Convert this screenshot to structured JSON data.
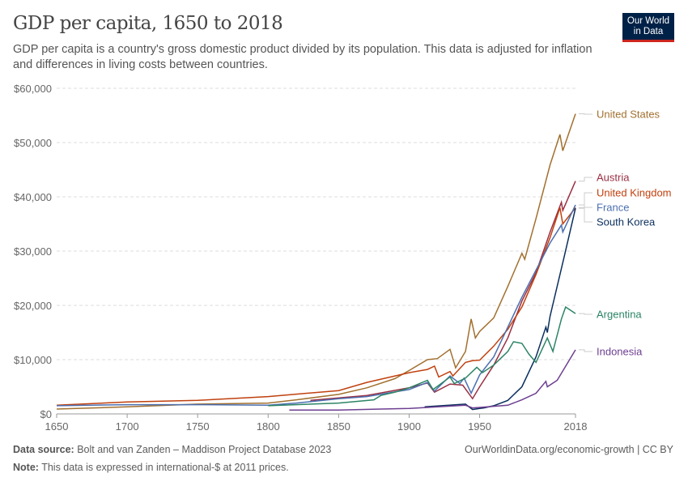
{
  "header": {
    "title": "GDP per capita, 1650 to 2018",
    "subtitle": "GDP per capita is a country's gross domestic product divided by its population. This data is adjusted for inflation and differences in living costs between countries.",
    "logo": "Our World in Data"
  },
  "footer": {
    "source_label": "Data source:",
    "source": "Bolt and van Zanden – Maddison Project Database 2023",
    "url": "OurWorldinData.org/economic-growth | CC BY",
    "note_label": "Note:",
    "note": "This data is expressed in international-$ at 2011 prices."
  },
  "chart_data": {
    "type": "line",
    "title": "GDP per capita, 1650 to 2018",
    "xlim": [
      1650,
      2018
    ],
    "ylim": [
      0,
      60000
    ],
    "xticks": [
      1650,
      1700,
      1750,
      1800,
      1850,
      1900,
      1950,
      2018
    ],
    "yticks": [
      0,
      10000,
      20000,
      30000,
      40000,
      50000,
      60000
    ],
    "ytick_labels": [
      "$0",
      "$10,000",
      "$20,000",
      "$30,000",
      "$40,000",
      "$50,000",
      "$60,000"
    ],
    "grid": "horizontal dashed",
    "legend": "right, labels at line ends",
    "series": [
      {
        "name": "United States",
        "color": "#a2702f",
        "label_value": 55300,
        "points": [
          [
            1650,
            900
          ],
          [
            1700,
            1300
          ],
          [
            1750,
            1800
          ],
          [
            1800,
            2000
          ],
          [
            1820,
            2600
          ],
          [
            1850,
            3600
          ],
          [
            1870,
            4800
          ],
          [
            1890,
            6500
          ],
          [
            1900,
            8000
          ],
          [
            1913,
            10000
          ],
          [
            1920,
            10200
          ],
          [
            1929,
            11900
          ],
          [
            1933,
            8500
          ],
          [
            1940,
            11500
          ],
          [
            1944,
            17500
          ],
          [
            1947,
            14000
          ],
          [
            1950,
            15200
          ],
          [
            1960,
            17700
          ],
          [
            1970,
            23500
          ],
          [
            1980,
            29600
          ],
          [
            1982,
            28500
          ],
          [
            1990,
            36000
          ],
          [
            2000,
            45900
          ],
          [
            2007,
            51500
          ],
          [
            2009,
            48500
          ],
          [
            2018,
            55300
          ]
        ]
      },
      {
        "name": "Austria",
        "color": "#9a3043",
        "label_value": 42900,
        "points": [
          [
            1830,
            2500
          ],
          [
            1870,
            3400
          ],
          [
            1900,
            4800
          ],
          [
            1913,
            5700
          ],
          [
            1918,
            4000
          ],
          [
            1929,
            5500
          ],
          [
            1938,
            5300
          ],
          [
            1945,
            2800
          ],
          [
            1950,
            5000
          ],
          [
            1960,
            9000
          ],
          [
            1970,
            14000
          ],
          [
            1980,
            20800
          ],
          [
            1990,
            26000
          ],
          [
            2000,
            33500
          ],
          [
            2008,
            39000
          ],
          [
            2009,
            37500
          ],
          [
            2018,
            42900
          ]
        ]
      },
      {
        "name": "United Kingdom",
        "color": "#c0400e",
        "label_value": 38000,
        "points": [
          [
            1650,
            1600
          ],
          [
            1700,
            2200
          ],
          [
            1750,
            2500
          ],
          [
            1800,
            3200
          ],
          [
            1850,
            4300
          ],
          [
            1870,
            5800
          ],
          [
            1900,
            7600
          ],
          [
            1913,
            8200
          ],
          [
            1918,
            8800
          ],
          [
            1921,
            6800
          ],
          [
            1929,
            7800
          ],
          [
            1931,
            7000
          ],
          [
            1940,
            9500
          ],
          [
            1945,
            9800
          ],
          [
            1950,
            9900
          ],
          [
            1960,
            12500
          ],
          [
            1970,
            15600
          ],
          [
            1980,
            19700
          ],
          [
            1990,
            25700
          ],
          [
            2000,
            32500
          ],
          [
            2007,
            38000
          ],
          [
            2009,
            35000
          ],
          [
            2018,
            38000
          ]
        ]
      },
      {
        "name": "France",
        "color": "#4c6fb0",
        "label_value": 38500,
        "points": [
          [
            1650,
            1500
          ],
          [
            1700,
            1700
          ],
          [
            1750,
            1700
          ],
          [
            1800,
            1600
          ],
          [
            1820,
            2000
          ],
          [
            1850,
            2800
          ],
          [
            1870,
            3200
          ],
          [
            1900,
            4500
          ],
          [
            1913,
            5800
          ],
          [
            1918,
            4200
          ],
          [
            1929,
            7000
          ],
          [
            1936,
            5600
          ],
          [
            1939,
            6600
          ],
          [
            1944,
            3800
          ],
          [
            1950,
            7200
          ],
          [
            1960,
            10500
          ],
          [
            1970,
            16000
          ],
          [
            1980,
            21500
          ],
          [
            1990,
            26500
          ],
          [
            2000,
            31500
          ],
          [
            2008,
            34800
          ],
          [
            2009,
            33500
          ],
          [
            2018,
            38500
          ]
        ]
      },
      {
        "name": "South Korea",
        "color": "#0b2f5e",
        "label_value": 37900,
        "points": [
          [
            1911,
            1300
          ],
          [
            1940,
            1800
          ],
          [
            1945,
            800
          ],
          [
            1950,
            1000
          ],
          [
            1953,
            1100
          ],
          [
            1960,
            1500
          ],
          [
            1970,
            2500
          ],
          [
            1980,
            5000
          ],
          [
            1990,
            10500
          ],
          [
            1997,
            16000
          ],
          [
            1998,
            15000
          ],
          [
            2000,
            18000
          ],
          [
            2010,
            29000
          ],
          [
            2018,
            37900
          ]
        ]
      },
      {
        "name": "Argentina",
        "color": "#2c8465",
        "label_value": 18500,
        "points": [
          [
            1800,
            1500
          ],
          [
            1850,
            2000
          ],
          [
            1875,
            2600
          ],
          [
            1880,
            3400
          ],
          [
            1890,
            4000
          ],
          [
            1900,
            4800
          ],
          [
            1913,
            6200
          ],
          [
            1917,
            4500
          ],
          [
            1929,
            6800
          ],
          [
            1932,
            5600
          ],
          [
            1940,
            6600
          ],
          [
            1948,
            8600
          ],
          [
            1952,
            7600
          ],
          [
            1960,
            9000
          ],
          [
            1970,
            11500
          ],
          [
            1974,
            13300
          ],
          [
            1980,
            13000
          ],
          [
            1985,
            11000
          ],
          [
            1990,
            9500
          ],
          [
            1998,
            14000
          ],
          [
            2002,
            11500
          ],
          [
            2008,
            17500
          ],
          [
            2011,
            19700
          ],
          [
            2018,
            18500
          ]
        ]
      },
      {
        "name": "Indonesia",
        "color": "#6d3e91",
        "label_value": 11800,
        "points": [
          [
            1815,
            700
          ],
          [
            1850,
            700
          ],
          [
            1880,
            900
          ],
          [
            1900,
            1000
          ],
          [
            1913,
            1200
          ],
          [
            1940,
            1600
          ],
          [
            1945,
            1100
          ],
          [
            1950,
            1200
          ],
          [
            1960,
            1400
          ],
          [
            1970,
            1600
          ],
          [
            1980,
            2600
          ],
          [
            1990,
            3800
          ],
          [
            1997,
            6000
          ],
          [
            1998,
            5000
          ],
          [
            2005,
            6200
          ],
          [
            2018,
            11800
          ]
        ]
      }
    ]
  }
}
